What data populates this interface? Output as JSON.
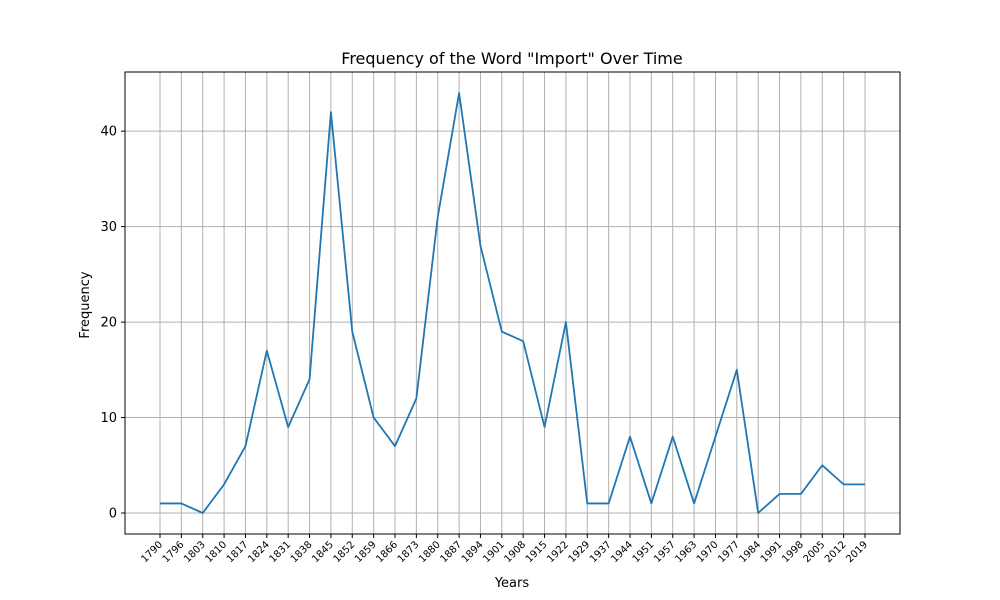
{
  "chart_data": {
    "type": "line",
    "title": "Frequency of the Word \"Import\" Over Time",
    "xlabel": "Years",
    "ylabel": "Frequency",
    "categories": [
      "1790",
      "1796",
      "1803",
      "1810",
      "1817",
      "1824",
      "1831",
      "1838",
      "1845",
      "1852",
      "1859",
      "1866",
      "1873",
      "1880",
      "1887",
      "1894",
      "1901",
      "1908",
      "1915",
      "1922",
      "1929",
      "1937",
      "1944",
      "1951",
      "1957",
      "1963",
      "1970",
      "1977",
      "1984",
      "1991",
      "1998",
      "2005",
      "2012",
      "2019"
    ],
    "series": [
      {
        "values": [
          1,
          1,
          0,
          3,
          7,
          17,
          9,
          14,
          42,
          19,
          10,
          7,
          12,
          31,
          44,
          28,
          19,
          18,
          9,
          20,
          1,
          1,
          8,
          1,
          8,
          1,
          8,
          15,
          0,
          2,
          2,
          5,
          3,
          3
        ],
        "color": "#1f77b4"
      }
    ],
    "ylim": [
      -2.2,
      46.2
    ],
    "yticks": [
      0,
      10,
      20,
      30,
      40
    ],
    "grid": true,
    "legend": "none"
  }
}
